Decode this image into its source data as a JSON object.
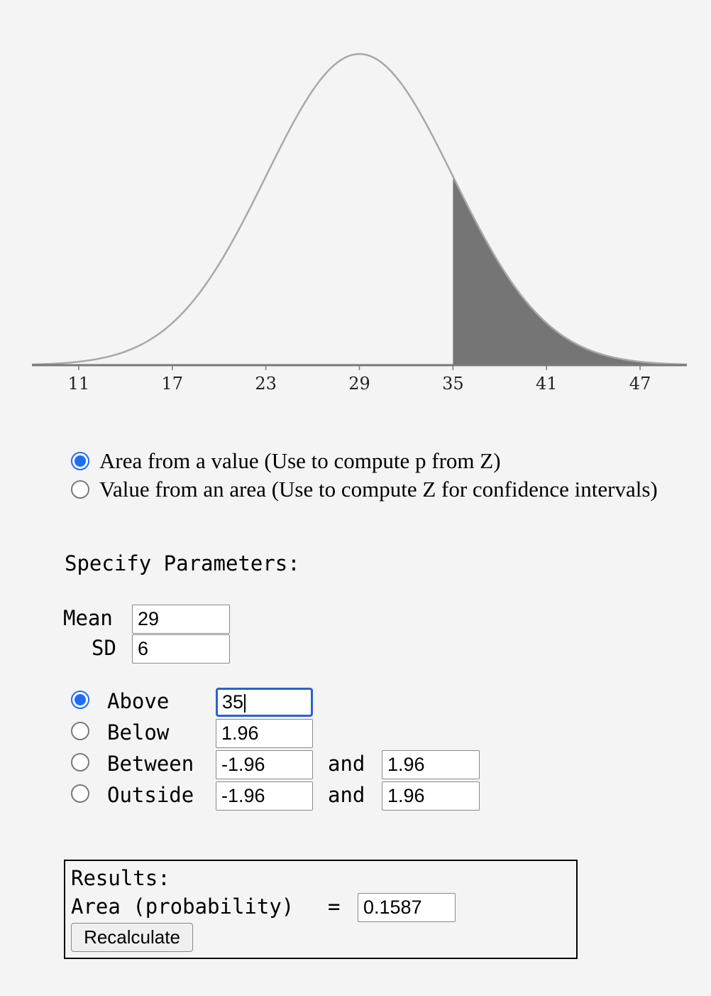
{
  "chart_data": {
    "type": "area",
    "distribution": "normal",
    "mean": 29,
    "sd": 6,
    "shaded_region": {
      "type": "above",
      "from": 35
    },
    "xlim": [
      8,
      50
    ],
    "x_ticks": [
      "11",
      "17",
      "23",
      "29",
      "35",
      "41",
      "47"
    ],
    "curve_color": "#a8a8a8",
    "shade_color": "#757575",
    "grid": false
  },
  "mode": {
    "options": [
      {
        "label": "Area from a value (Use to compute p from Z)",
        "checked": true
      },
      {
        "label": "Value from an area (Use to compute Z for confidence intervals)",
        "checked": false
      }
    ]
  },
  "params": {
    "heading": "Specify Parameters:",
    "mean_label": "Mean",
    "mean_value": "29",
    "sd_label": "SD",
    "sd_value": "6"
  },
  "region": {
    "and_label": "and",
    "options": [
      {
        "label": "Above",
        "checked": true,
        "value": "35"
      },
      {
        "label": "Below",
        "checked": false,
        "value": "1.96"
      },
      {
        "label": "Between",
        "checked": false,
        "value_low": "-1.96",
        "value_high": "1.96"
      },
      {
        "label": "Outside",
        "checked": false,
        "value_low": "-1.96",
        "value_high": "1.96"
      }
    ]
  },
  "results": {
    "heading": "Results:",
    "area_label": "Area (probability)",
    "equals": "=",
    "area_value": "0.1587",
    "recalculate_label": "Recalculate"
  },
  "colors": {
    "background": "#f4f4f4",
    "accent": "#1e6ef5",
    "focus_border": "#2a62c9"
  }
}
